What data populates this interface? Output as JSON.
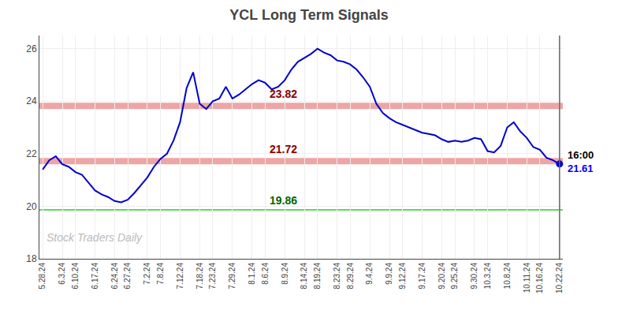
{
  "chart_data": {
    "type": "line",
    "title": "YCL Long Term Signals",
    "categories": [
      "5.28.24",
      null,
      null,
      "6.3.24",
      null,
      "6.10.24",
      null,
      null,
      "6.17.24",
      null,
      null,
      "6.24.24",
      null,
      "6.27.24",
      null,
      null,
      "7.2.24",
      null,
      "7.8.24",
      null,
      null,
      "7.12.24",
      null,
      null,
      "7.18.24",
      null,
      "7.23.24",
      null,
      null,
      "7.29.24",
      null,
      null,
      "8.1.24",
      null,
      "8.6.24",
      null,
      null,
      "8.9.24",
      null,
      null,
      "8.14.24",
      null,
      "8.19.24",
      null,
      null,
      "8.23.24",
      null,
      "8.29.24",
      null,
      null,
      "9.4.24",
      null,
      null,
      "9.9.24",
      null,
      "9.12.24",
      null,
      null,
      "9.17.24",
      null,
      null,
      "9.20.24",
      null,
      "9.25.24",
      null,
      null,
      "9.30.24",
      null,
      "10.3.24",
      null,
      null,
      "10.8.24",
      null,
      null,
      "10.11.24",
      null,
      "10.16.24",
      null,
      null,
      "10.22.24"
    ],
    "series": [
      {
        "color": "#0000cc",
        "values": [
          21.4,
          21.75,
          21.9,
          21.6,
          21.5,
          21.3,
          21.2,
          20.9,
          20.6,
          20.45,
          20.35,
          20.2,
          20.15,
          20.25,
          20.5,
          20.8,
          21.1,
          21.5,
          21.8,
          22.0,
          22.5,
          23.2,
          24.5,
          25.1,
          23.9,
          23.7,
          24.0,
          24.1,
          24.55,
          24.1,
          24.25,
          24.45,
          24.65,
          24.8,
          24.7,
          24.45,
          24.55,
          24.8,
          25.2,
          25.5,
          25.65,
          25.8,
          26.0,
          25.85,
          25.75,
          25.55,
          25.5,
          25.4,
          25.2,
          24.9,
          24.55,
          23.9,
          23.55,
          23.35,
          23.2,
          23.1,
          23.0,
          22.9,
          22.8,
          22.75,
          22.7,
          22.55,
          22.45,
          22.5,
          22.45,
          22.5,
          22.6,
          22.55,
          22.1,
          22.05,
          22.3,
          23.0,
          23.2,
          22.85,
          22.6,
          22.25,
          22.15,
          21.85,
          21.75,
          21.61
        ]
      }
    ],
    "reference_lines": [
      {
        "value": 23.82,
        "label": "23.82",
        "color": "#cc0000",
        "label_color": "#8b0000"
      },
      {
        "value": 21.72,
        "label": "21.72",
        "color": "#cc0000",
        "label_color": "#8b0000"
      },
      {
        "value": 19.86,
        "label": "19.86",
        "color": "#00bb00",
        "label_color": "#006600"
      }
    ],
    "last_point": {
      "value": 21.61,
      "value_label": "21.61",
      "time_label": "16:00",
      "color": "#0000cc",
      "value_label_color": "#0000ff",
      "time_label_color": "#000000",
      "vline_color": "#666666"
    },
    "watermark": {
      "text": "Stock Traders Daily",
      "color": "#bbbbbb"
    },
    "ylim": [
      18.0,
      26.5
    ],
    "yticks": [
      18,
      20,
      22,
      24,
      26
    ],
    "grid": true
  }
}
